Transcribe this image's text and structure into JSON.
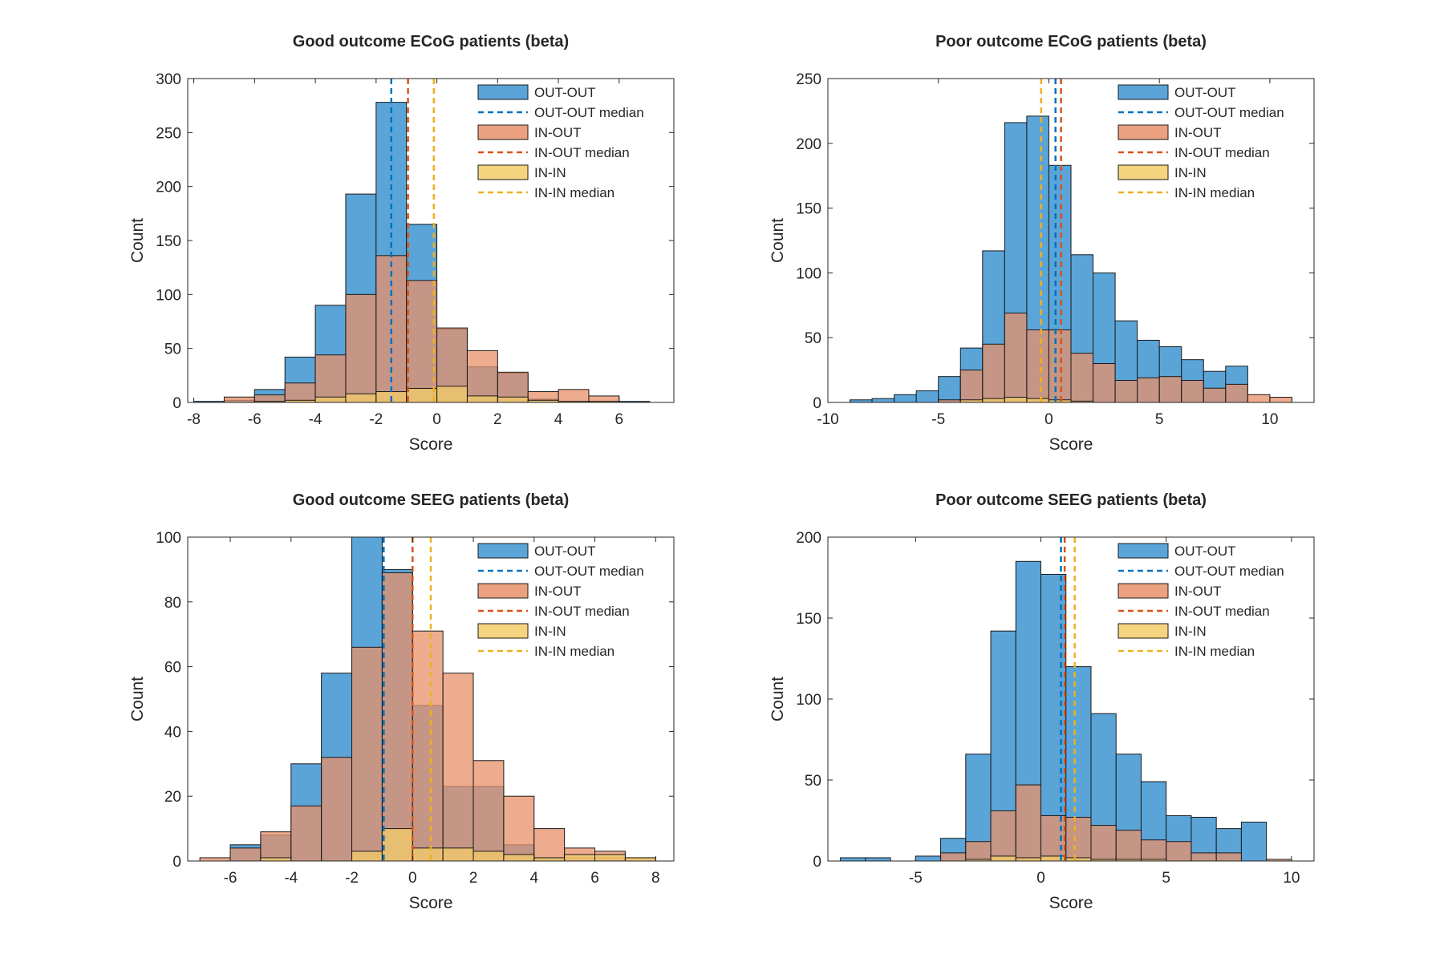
{
  "colors": {
    "out_out": "#0072BD",
    "in_out": "#D95319",
    "in_in": "#EDB120",
    "out_out_fill": "#5BA4D8",
    "in_out_fill": "#E8906A",
    "in_in_fill": "#F3CD69",
    "overlap_fill": "#A86B62"
  },
  "legend_labels": [
    "OUT-OUT",
    "OUT-OUT median",
    "IN-OUT",
    "IN-OUT median",
    "IN-IN",
    "IN-IN median"
  ],
  "chart_data": [
    {
      "type": "bar",
      "title": "Good outcome ECoG patients (beta)",
      "xlabel": "Score",
      "ylabel": "Count",
      "xlim": [
        -8.2,
        7.8
      ],
      "ylim": [
        0,
        300
      ],
      "xticks": [
        -8,
        -6,
        -4,
        -2,
        0,
        2,
        4,
        6
      ],
      "yticks": [
        0,
        50,
        100,
        150,
        200,
        250,
        300
      ],
      "legend_position": "top-right",
      "bin_width": 1,
      "series": [
        {
          "name": "OUT-OUT",
          "bins": [
            [
              -8,
              1
            ],
            [
              -7,
              2
            ],
            [
              -6,
              12
            ],
            [
              -5,
              42
            ],
            [
              -4,
              90
            ],
            [
              -3,
              193
            ],
            [
              -2,
              278
            ],
            [
              -1,
              165
            ],
            [
              0,
              68
            ],
            [
              1,
              33
            ],
            [
              2,
              27
            ],
            [
              3,
              3
            ],
            [
              4,
              1
            ],
            [
              5,
              1
            ],
            [
              6,
              1
            ]
          ]
        },
        {
          "name": "IN-OUT",
          "bins": [
            [
              -7,
              5
            ],
            [
              -6,
              7
            ],
            [
              -5,
              18
            ],
            [
              -4,
              44
            ],
            [
              -3,
              100
            ],
            [
              -2,
              136
            ],
            [
              -1,
              113
            ],
            [
              0,
              69
            ],
            [
              1,
              48
            ],
            [
              2,
              28
            ],
            [
              3,
              10
            ],
            [
              4,
              12
            ],
            [
              5,
              6
            ]
          ]
        },
        {
          "name": "IN-IN",
          "bins": [
            [
              -6,
              1
            ],
            [
              -5,
              2
            ],
            [
              -4,
              5
            ],
            [
              -3,
              8
            ],
            [
              -2,
              10
            ],
            [
              -1,
              13
            ],
            [
              0,
              15
            ],
            [
              1,
              6
            ],
            [
              2,
              5
            ],
            [
              3,
              2
            ],
            [
              4,
              1
            ],
            [
              5,
              1
            ]
          ]
        }
      ],
      "medians": [
        {
          "name": "OUT-OUT median",
          "value": -1.5
        },
        {
          "name": "IN-OUT median",
          "value": -0.95
        },
        {
          "name": "IN-IN median",
          "value": -0.1
        }
      ]
    },
    {
      "type": "bar",
      "title": "Poor outcome ECoG patients (beta)",
      "xlabel": "Score",
      "ylabel": "Count",
      "xlim": [
        -10,
        12
      ],
      "ylim": [
        0,
        250
      ],
      "xticks": [
        -10,
        -5,
        0,
        5,
        10
      ],
      "yticks": [
        0,
        50,
        100,
        150,
        200,
        250
      ],
      "legend_position": "top-right",
      "bin_width": 1,
      "series": [
        {
          "name": "OUT-OUT",
          "bins": [
            [
              -9,
              2
            ],
            [
              -8,
              3
            ],
            [
              -7,
              6
            ],
            [
              -6,
              9
            ],
            [
              -5,
              20
            ],
            [
              -4,
              42
            ],
            [
              -3,
              117
            ],
            [
              -2,
              216
            ],
            [
              -1,
              221
            ],
            [
              0,
              183
            ],
            [
              1,
              114
            ],
            [
              2,
              100
            ],
            [
              3,
              63
            ],
            [
              4,
              48
            ],
            [
              5,
              43
            ],
            [
              6,
              33
            ],
            [
              7,
              24
            ],
            [
              8,
              28
            ]
          ]
        },
        {
          "name": "IN-OUT",
          "bins": [
            [
              -5,
              2
            ],
            [
              -4,
              25
            ],
            [
              -3,
              45
            ],
            [
              -2,
              69
            ],
            [
              -1,
              56
            ],
            [
              0,
              56
            ],
            [
              1,
              38
            ],
            [
              2,
              30
            ],
            [
              3,
              17
            ],
            [
              4,
              19
            ],
            [
              5,
              20
            ],
            [
              6,
              17
            ],
            [
              7,
              11
            ],
            [
              8,
              14
            ],
            [
              9,
              6
            ],
            [
              10,
              4
            ]
          ]
        },
        {
          "name": "IN-IN",
          "bins": [
            [
              -4,
              2
            ],
            [
              -3,
              3
            ],
            [
              -2,
              4
            ],
            [
              -1,
              3
            ],
            [
              0,
              2
            ],
            [
              1,
              1
            ]
          ]
        }
      ],
      "medians": [
        {
          "name": "OUT-OUT median",
          "value": 0.3
        },
        {
          "name": "IN-OUT median",
          "value": 0.55
        },
        {
          "name": "IN-IN median",
          "value": -0.35
        }
      ]
    },
    {
      "type": "bar",
      "title": "Good outcome SEEG patients (beta)",
      "xlabel": "Score",
      "ylabel": "Count",
      "xlim": [
        -7.4,
        8.6
      ],
      "ylim": [
        0,
        100
      ],
      "xticks": [
        -6,
        -4,
        -2,
        0,
        2,
        4,
        6,
        8
      ],
      "yticks": [
        0,
        20,
        40,
        60,
        80,
        100
      ],
      "legend_position": "top-right",
      "bin_width": 1,
      "series": [
        {
          "name": "OUT-OUT",
          "bins": [
            [
              -6,
              5
            ],
            [
              -5,
              8
            ],
            [
              -4,
              30
            ],
            [
              -3,
              58
            ],
            [
              -2,
              100
            ],
            [
              -1,
              90
            ],
            [
              0,
              48
            ],
            [
              1,
              23
            ],
            [
              2,
              23
            ],
            [
              3,
              5
            ],
            [
              4,
              1
            ],
            [
              5,
              1
            ],
            [
              6,
              1
            ]
          ]
        },
        {
          "name": "IN-OUT",
          "bins": [
            [
              -7,
              1
            ],
            [
              -6,
              4
            ],
            [
              -5,
              9
            ],
            [
              -4,
              17
            ],
            [
              -3,
              32
            ],
            [
              -2,
              66
            ],
            [
              -1,
              89
            ],
            [
              0,
              71
            ],
            [
              1,
              58
            ],
            [
              2,
              31
            ],
            [
              3,
              20
            ],
            [
              4,
              10
            ],
            [
              5,
              4
            ],
            [
              6,
              3
            ],
            [
              7,
              1
            ]
          ]
        },
        {
          "name": "IN-IN",
          "bins": [
            [
              -5,
              1
            ],
            [
              -2,
              3
            ],
            [
              -1,
              10
            ],
            [
              0,
              4
            ],
            [
              1,
              4
            ],
            [
              2,
              3
            ],
            [
              3,
              2
            ],
            [
              4,
              1
            ],
            [
              5,
              2
            ],
            [
              6,
              2
            ],
            [
              7,
              1
            ]
          ]
        }
      ],
      "medians": [
        {
          "name": "OUT-OUT median",
          "value": -0.95
        },
        {
          "name": "IN-OUT median",
          "value": 0.0
        },
        {
          "name": "IN-IN median",
          "value": 0.6
        }
      ]
    },
    {
      "type": "bar",
      "title": "Poor outcome SEEG patients (beta)",
      "xlabel": "Score",
      "ylabel": "Count",
      "xlim": [
        -8.5,
        10.9
      ],
      "ylim": [
        0,
        200
      ],
      "xticks": [
        -5,
        0,
        5,
        10
      ],
      "yticks": [
        0,
        50,
        100,
        150,
        200
      ],
      "legend_position": "top-right",
      "bin_width": 1,
      "series": [
        {
          "name": "OUT-OUT",
          "bins": [
            [
              -8,
              2
            ],
            [
              -7,
              2
            ],
            [
              -5,
              3
            ],
            [
              -4,
              14
            ],
            [
              -3,
              66
            ],
            [
              -2,
              142
            ],
            [
              -1,
              185
            ],
            [
              0,
              177
            ],
            [
              1,
              120
            ],
            [
              2,
              91
            ],
            [
              3,
              66
            ],
            [
              4,
              49
            ],
            [
              5,
              28
            ],
            [
              6,
              27
            ],
            [
              7,
              20
            ],
            [
              8,
              24
            ]
          ]
        },
        {
          "name": "IN-OUT",
          "bins": [
            [
              -4,
              5
            ],
            [
              -3,
              12
            ],
            [
              -2,
              31
            ],
            [
              -1,
              47
            ],
            [
              0,
              28
            ],
            [
              1,
              27
            ],
            [
              2,
              22
            ],
            [
              3,
              19
            ],
            [
              4,
              13
            ],
            [
              5,
              12
            ],
            [
              6,
              5
            ],
            [
              7,
              5
            ],
            [
              9,
              1
            ]
          ]
        },
        {
          "name": "IN-IN",
          "bins": [
            [
              -3,
              1
            ],
            [
              -2,
              3
            ],
            [
              -1,
              2
            ],
            [
              0,
              3
            ],
            [
              1,
              2
            ],
            [
              2,
              1
            ],
            [
              3,
              1
            ],
            [
              4,
              1
            ]
          ]
        }
      ],
      "medians": [
        {
          "name": "OUT-OUT median",
          "value": 0.8
        },
        {
          "name": "IN-OUT median",
          "value": 0.95
        },
        {
          "name": "IN-IN median",
          "value": 1.35
        }
      ]
    }
  ]
}
